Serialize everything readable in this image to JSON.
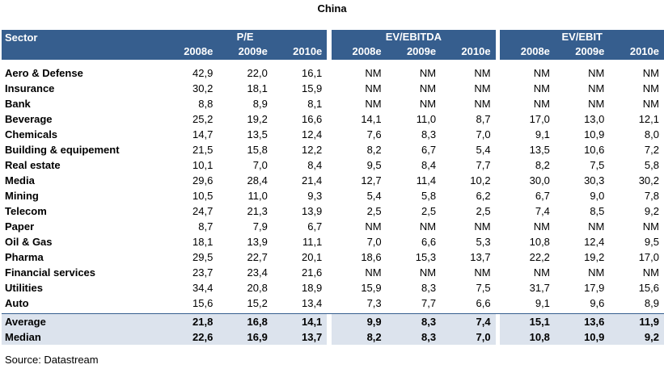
{
  "title": "China",
  "header": {
    "sector": "Sector",
    "groups": [
      "P/E",
      "EV/EBITDA",
      "EV/EBIT"
    ],
    "years": [
      "2008e",
      "2009e",
      "2010e"
    ]
  },
  "rows": [
    {
      "sector": "Aero & Defense",
      "values": [
        "42,9",
        "22,0",
        "16,1",
        "NM",
        "NM",
        "NM",
        "NM",
        "NM",
        "NM"
      ]
    },
    {
      "sector": "Insurance",
      "values": [
        "30,2",
        "18,1",
        "15,9",
        "NM",
        "NM",
        "NM",
        "NM",
        "NM",
        "NM"
      ]
    },
    {
      "sector": "Bank",
      "values": [
        "8,8",
        "8,9",
        "8,1",
        "NM",
        "NM",
        "NM",
        "NM",
        "NM",
        "NM"
      ]
    },
    {
      "sector": "Beverage",
      "values": [
        "25,2",
        "19,2",
        "16,6",
        "14,1",
        "11,0",
        "8,7",
        "17,0",
        "13,0",
        "12,1"
      ]
    },
    {
      "sector": "Chemicals",
      "values": [
        "14,7",
        "13,5",
        "12,4",
        "7,6",
        "8,3",
        "7,0",
        "9,1",
        "10,9",
        "8,0"
      ]
    },
    {
      "sector": "Building & equipement",
      "values": [
        "21,5",
        "15,8",
        "12,2",
        "8,2",
        "6,7",
        "5,4",
        "13,5",
        "10,6",
        "7,2"
      ]
    },
    {
      "sector": "Real estate",
      "values": [
        "10,1",
        "7,0",
        "8,4",
        "9,5",
        "8,4",
        "7,7",
        "8,2",
        "7,5",
        "5,8"
      ]
    },
    {
      "sector": "Media",
      "values": [
        "29,6",
        "28,4",
        "21,4",
        "12,7",
        "11,4",
        "10,2",
        "30,0",
        "30,3",
        "30,2"
      ]
    },
    {
      "sector": "Mining",
      "values": [
        "10,5",
        "11,0",
        "9,3",
        "5,4",
        "5,8",
        "6,2",
        "6,7",
        "9,0",
        "7,8"
      ]
    },
    {
      "sector": "Telecom",
      "values": [
        "24,7",
        "21,3",
        "13,9",
        "2,5",
        "2,5",
        "2,5",
        "7,4",
        "8,5",
        "9,2"
      ]
    },
    {
      "sector": "Paper",
      "values": [
        "8,7",
        "7,9",
        "6,7",
        "NM",
        "NM",
        "NM",
        "NM",
        "NM",
        "NM"
      ]
    },
    {
      "sector": "Oil & Gas",
      "values": [
        "18,1",
        "13,9",
        "11,1",
        "7,0",
        "6,6",
        "5,3",
        "10,8",
        "12,4",
        "9,5"
      ]
    },
    {
      "sector": "Pharma",
      "values": [
        "29,5",
        "22,7",
        "20,1",
        "18,6",
        "15,3",
        "13,7",
        "22,2",
        "19,2",
        "17,0"
      ]
    },
    {
      "sector": "Financial services",
      "values": [
        "23,7",
        "23,4",
        "21,6",
        "NM",
        "NM",
        "NM",
        "NM",
        "NM",
        "NM"
      ]
    },
    {
      "sector": "Utilities",
      "values": [
        "34,4",
        "20,8",
        "18,9",
        "15,9",
        "8,3",
        "7,5",
        "31,7",
        "17,9",
        "15,6"
      ]
    },
    {
      "sector": "Auto",
      "values": [
        "15,6",
        "15,2",
        "13,4",
        "7,3",
        "7,7",
        "6,6",
        "9,1",
        "9,6",
        "8,9"
      ]
    }
  ],
  "summary": [
    {
      "sector": "Average",
      "values": [
        "21,8",
        "16,8",
        "14,1",
        "9,9",
        "8,3",
        "7,4",
        "15,1",
        "13,6",
        "11,9"
      ]
    },
    {
      "sector": "Median",
      "values": [
        "22,6",
        "16,9",
        "13,7",
        "8,2",
        "8,3",
        "7,0",
        "10,8",
        "10,9",
        "9,2"
      ]
    }
  ],
  "source": "Source: Datastream",
  "colors": {
    "header_bg": "#365e8e",
    "header_text": "#ffffff",
    "summary_bg": "#dce3ed"
  }
}
